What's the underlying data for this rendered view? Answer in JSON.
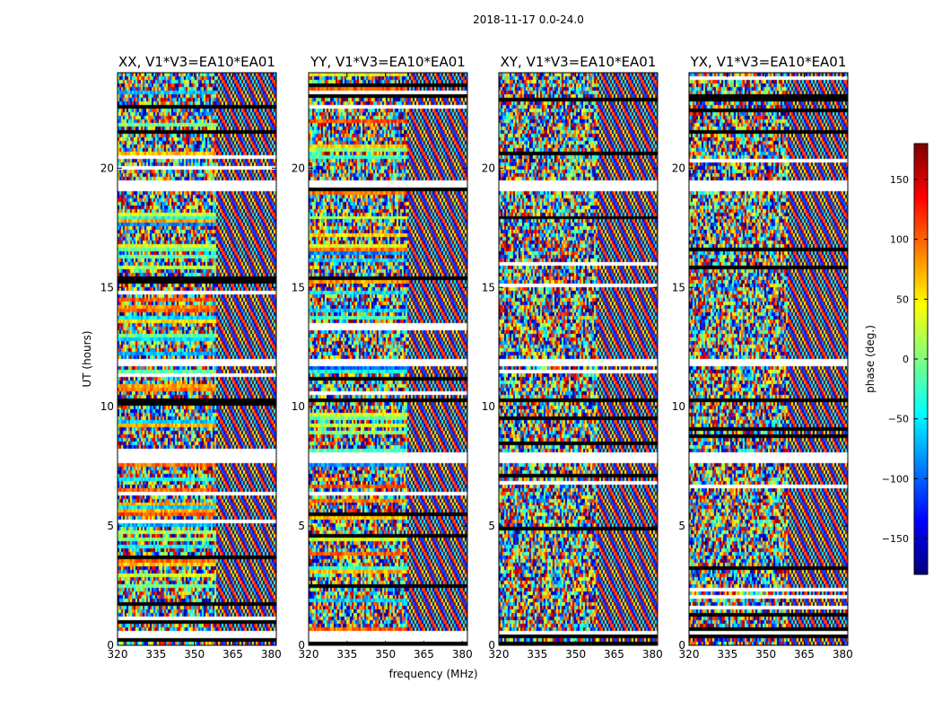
{
  "chart_data": {
    "type": "heatmap",
    "suptitle": "2018-11-17 0.0-24.0",
    "xlabel": "frequency (MHz)",
    "ylabel": "UT (hours)",
    "xlim": [
      320,
      382
    ],
    "ylim": [
      0,
      24
    ],
    "xticks": [
      320,
      335,
      350,
      365,
      380
    ],
    "yticks": [
      0,
      5,
      10,
      15,
      20
    ],
    "panels": [
      {
        "title": "XX, V1*V3=EA10*EA01"
      },
      {
        "title": "YY, V1*V3=EA10*EA01"
      },
      {
        "title": "XY, V1*V3=EA10*EA01"
      },
      {
        "title": "YX, V1*V3=EA10*EA01"
      }
    ],
    "colorbar": {
      "label": "phase (deg.)",
      "range": [
        -180,
        180
      ],
      "ticks": [
        -150,
        -100,
        -50,
        0,
        50,
        100,
        150
      ],
      "tick_labels": [
        "−150",
        "−100",
        "−50",
        "0",
        "50",
        "100",
        "150"
      ],
      "colormap": "jet",
      "colors": [
        "#00007f",
        "#0000ff",
        "#007fff",
        "#00ffff",
        "#7fff7f",
        "#ffff00",
        "#ff7f00",
        "#ff0000",
        "#7f0000"
      ]
    },
    "flagged_bands_ut": [
      [
        7.6,
        8.0
      ],
      [
        10.05,
        10.35
      ],
      [
        0.3,
        0.45
      ],
      [
        11.6,
        11.9
      ],
      [
        18.95,
        19.35
      ]
    ],
    "grid": false
  }
}
